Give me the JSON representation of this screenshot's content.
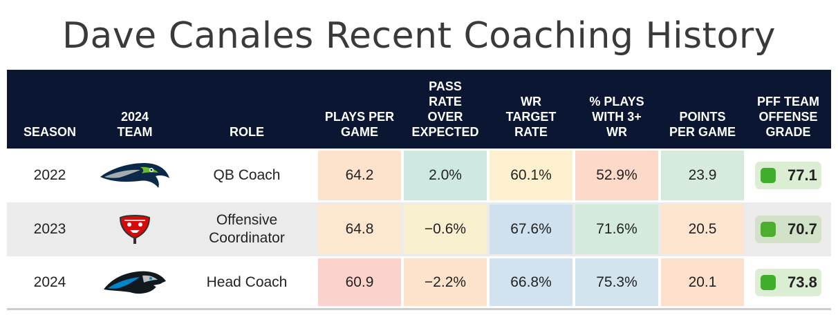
{
  "title": "Dave Canales Recent Coaching History",
  "chart_data": {
    "type": "table",
    "title": "Dave Canales Recent Coaching History",
    "columns": [
      "SEASON",
      "2024 TEAM",
      "ROLE",
      "PLAYS PER GAME",
      "PASS RATE OVER EXPECTED",
      "WR TARGET RATE",
      "% PLAYS WITH 3+ WR",
      "POINTS PER GAME",
      "PFF TEAM OFFENSE GRADE"
    ],
    "rows": [
      {
        "season": "2022",
        "team_logo": "seattle-seahawks-logo-icon",
        "role": "QB Coach",
        "plays_per_game": "64.2",
        "proe": "2.0%",
        "wr_target_rate": "60.1%",
        "pct_3wr": "52.9%",
        "points_per_game": "23.9",
        "pff_grade": "77.1",
        "colors": {
          "plays": "#fde2cc",
          "proe": "#cfe9e2",
          "wr": "#fdf0cf",
          "pct": "#fcd9c9",
          "ppg": "#d6ebdd"
        }
      },
      {
        "season": "2023",
        "team_logo": "tampa-bay-buccaneers-logo-icon",
        "role": "Offensive Coordinator",
        "plays_per_game": "64.8",
        "proe": "−0.6%",
        "wr_target_rate": "67.6%",
        "pct_3wr": "71.6%",
        "points_per_game": "20.5",
        "pff_grade": "70.7",
        "colors": {
          "plays": "#fde8cf",
          "proe": "#f9f0cf",
          "wr": "#cfe0ee",
          "pct": "#d3eadc",
          "ppg": "#fde5cf"
        }
      },
      {
        "season": "2024",
        "team_logo": "carolina-panthers-logo-icon",
        "role": "Head Coach",
        "plays_per_game": "60.9",
        "proe": "−2.2%",
        "wr_target_rate": "66.8%",
        "pct_3wr": "75.3%",
        "points_per_game": "20.1",
        "pff_grade": "73.8",
        "colors": {
          "plays": "#fcd3cc",
          "proe": "#fde2cc",
          "wr": "#d2e3ef",
          "pct": "#d3e4ef",
          "ppg": "#fde0cc"
        }
      }
    ]
  }
}
